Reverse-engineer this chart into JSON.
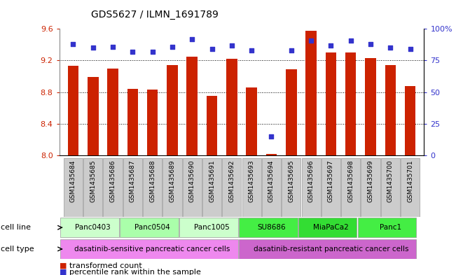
{
  "title": "GDS5627 / ILMN_1691789",
  "samples": [
    "GSM1435684",
    "GSM1435685",
    "GSM1435686",
    "GSM1435687",
    "GSM1435688",
    "GSM1435689",
    "GSM1435690",
    "GSM1435691",
    "GSM1435692",
    "GSM1435693",
    "GSM1435694",
    "GSM1435695",
    "GSM1435696",
    "GSM1435697",
    "GSM1435698",
    "GSM1435699",
    "GSM1435700",
    "GSM1435701"
  ],
  "transformed_count": [
    9.13,
    8.99,
    9.1,
    8.84,
    8.83,
    9.14,
    9.25,
    8.75,
    9.22,
    8.86,
    8.02,
    9.09,
    9.58,
    9.3,
    9.3,
    9.23,
    9.14,
    8.88
  ],
  "percentile_rank": [
    88,
    85,
    86,
    82,
    82,
    86,
    92,
    84,
    87,
    83,
    15,
    83,
    91,
    87,
    91,
    88,
    85,
    84
  ],
  "ylim_left": [
    8.0,
    9.6
  ],
  "ylim_right": [
    0,
    100
  ],
  "yticks_left": [
    8.0,
    8.4,
    8.8,
    9.2,
    9.6
  ],
  "yticks_right": [
    0,
    25,
    50,
    75,
    100
  ],
  "ytick_labels_right": [
    "0",
    "25",
    "50",
    "75",
    "100%"
  ],
  "bar_color": "#CC2200",
  "dot_color": "#3333CC",
  "grid_color": "#000000",
  "bar_bottom": 8.0,
  "cell_lines": [
    {
      "label": "Panc0403",
      "start": 0,
      "end": 3,
      "color": "#ccffcc"
    },
    {
      "label": "Panc0504",
      "start": 3,
      "end": 6,
      "color": "#aaffaa"
    },
    {
      "label": "Panc1005",
      "start": 6,
      "end": 9,
      "color": "#ccffcc"
    },
    {
      "label": "SU8686",
      "start": 9,
      "end": 12,
      "color": "#44ee44"
    },
    {
      "label": "MiaPaCa2",
      "start": 12,
      "end": 15,
      "color": "#33dd33"
    },
    {
      "label": "Panc1",
      "start": 15,
      "end": 18,
      "color": "#44ee44"
    }
  ],
  "cell_types": [
    {
      "label": "dasatinib-sensitive pancreatic cancer cells",
      "start": 0,
      "end": 9,
      "color": "#ee88ee"
    },
    {
      "label": "dasatinib-resistant pancreatic cancer cells",
      "start": 9,
      "end": 18,
      "color": "#cc66cc"
    }
  ],
  "legend_items": [
    {
      "label": "transformed count",
      "color": "#CC2200"
    },
    {
      "label": "percentile rank within the sample",
      "color": "#3333CC"
    }
  ],
  "xlabel_row1": "cell line",
  "xlabel_row2": "cell type",
  "bg_color": "#ffffff",
  "plot_bg": "#ffffff",
  "tick_label_color_left": "#CC2200",
  "tick_label_color_right": "#3333CC",
  "xtick_bg": "#cccccc"
}
